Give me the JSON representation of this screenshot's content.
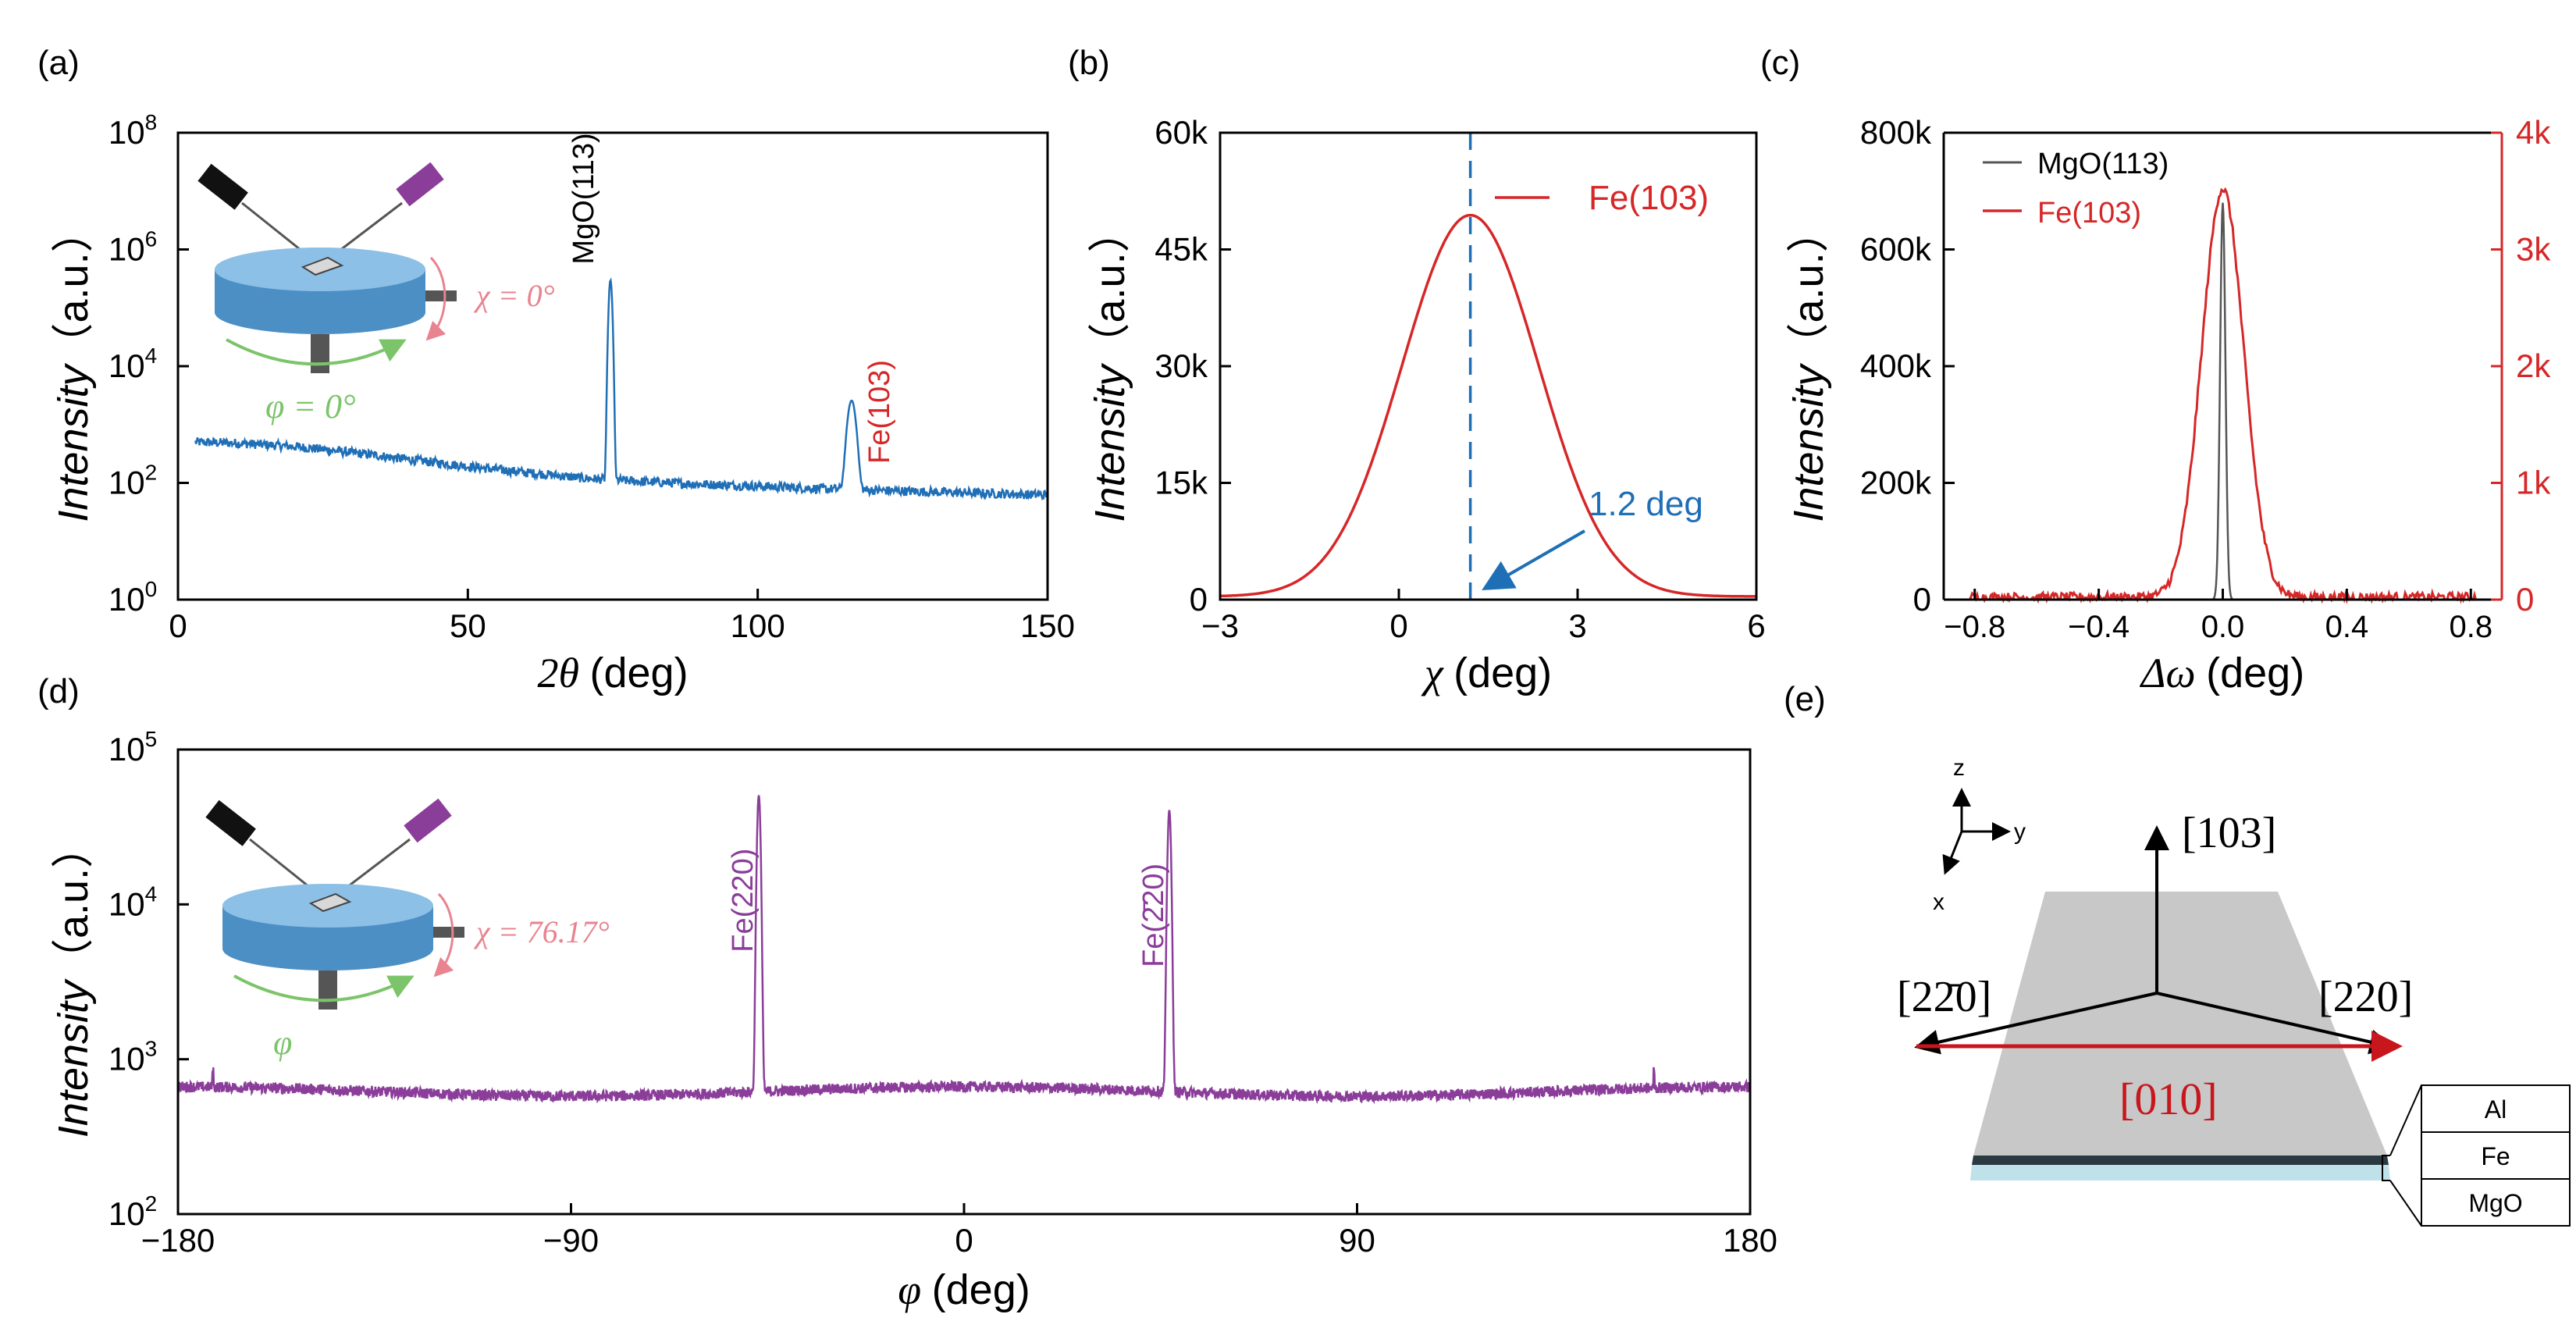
{
  "chart_data": [
    {
      "panel": "(a)",
      "type": "line",
      "x_axis": {
        "label_symbol": "2θ",
        "label_unit": "(deg)",
        "range": [
          0,
          150
        ],
        "ticks": [
          "0",
          "50",
          "100",
          "150"
        ]
      },
      "y_axis": {
        "label": "Intensity",
        "label_unit": "（a.u.）",
        "scale": "log",
        "range": [
          1,
          100000000
        ],
        "ticks": [
          {
            "base": "10",
            "exp": "0"
          },
          {
            "base": "10",
            "exp": "2"
          },
          {
            "base": "10",
            "exp": "4"
          },
          {
            "base": "10",
            "exp": "6"
          },
          {
            "base": "10",
            "exp": "8"
          }
        ]
      },
      "series": [
        {
          "color": "#1f6fb7",
          "baseline": [
            [
              3,
              500
            ],
            [
              10,
              480
            ],
            [
              20,
              420
            ],
            [
              30,
              330
            ],
            [
              40,
              250
            ],
            [
              50,
              190
            ],
            [
              60,
              150
            ],
            [
              70,
              120
            ],
            [
              80,
              105
            ],
            [
              90,
              95
            ],
            [
              100,
              88
            ],
            [
              110,
              80
            ],
            [
              120,
              75
            ],
            [
              130,
              70
            ],
            [
              140,
              66
            ],
            [
              150,
              62
            ]
          ],
          "peaks": [
            {
              "x": 74.6,
              "y": 300000,
              "label": "MgO(113)"
            },
            {
              "x": 116.2,
              "y": 2500,
              "label": "Fe(103)"
            }
          ]
        }
      ],
      "inset": {
        "chi_label": "χ = 0°",
        "phi_label": "φ = 0°"
      }
    },
    {
      "panel": "(b)",
      "type": "line",
      "x_axis": {
        "label_symbol": "χ",
        "label_unit": "(deg)",
        "range": [
          -3,
          6
        ],
        "ticks": [
          "-3",
          "0",
          "3",
          "6"
        ]
      },
      "y_axis": {
        "label": "Intensity",
        "label_unit": "（a.u.）",
        "range": [
          0,
          60000
        ],
        "ticks": [
          "0",
          "15k",
          "30k",
          "45k",
          "60k"
        ]
      },
      "series": [
        {
          "name": "Fe(103)",
          "color": "#d62728",
          "center": 1.2,
          "peak": 49000,
          "fwhm": 2.7
        }
      ],
      "marker_line": {
        "x": 1.2,
        "style": "dashed",
        "color": "#1f6fb7"
      },
      "annotation": "1.2 deg"
    },
    {
      "panel": "(c)",
      "type": "line",
      "x_axis": {
        "label_symbol": "Δω",
        "label_unit": "(deg)",
        "range": [
          -0.9,
          0.9
        ],
        "ticks": [
          "-0.8",
          "-0.4",
          "0.0",
          "0.4",
          "0.8"
        ]
      },
      "y_axis_left": {
        "label": "Intensity",
        "label_unit": "（a.u.）",
        "range": [
          0,
          800000
        ],
        "ticks": [
          "0",
          "200k",
          "400k",
          "600k",
          "800k"
        ]
      },
      "y_axis_right": {
        "range": [
          0,
          4000
        ],
        "ticks": [
          "0",
          "1k",
          "2k",
          "3k",
          "4k"
        ],
        "color": "#d62728"
      },
      "series": [
        {
          "name": "MgO(113)",
          "color": "#555555",
          "axis": "left",
          "center": 0.0,
          "peak": 680000,
          "fwhm": 0.02
        },
        {
          "name": "Fe(103)",
          "color": "#d62728",
          "axis": "right",
          "center": 0.0,
          "peak": 3500,
          "fwhm": 0.16
        }
      ]
    },
    {
      "panel": "(d)",
      "type": "line",
      "x_axis": {
        "label_symbol": "φ",
        "label_unit": "(deg)",
        "range": [
          -180,
          180
        ],
        "ticks": [
          "-180",
          "-90",
          "0",
          "90",
          "180"
        ]
      },
      "y_axis": {
        "label": "Intensity",
        "label_unit": "（a.u.）",
        "scale": "log",
        "range": [
          100,
          100000
        ],
        "ticks": [
          {
            "base": "10",
            "exp": "2"
          },
          {
            "base": "10",
            "exp": "3"
          },
          {
            "base": "10",
            "exp": "4"
          },
          {
            "base": "10",
            "exp": "5"
          }
        ]
      },
      "series": [
        {
          "color": "#8b3d9a",
          "baseline": 620,
          "peaks": [
            {
              "x": -47,
              "y": 50000,
              "label": "Fe(220)"
            },
            {
              "x": 47,
              "y": 40000,
              "label": "Fe(2̄20)"
            }
          ]
        }
      ],
      "inset": {
        "chi_label": "χ = 76.17°",
        "phi_label": "φ"
      }
    }
  ],
  "panel_labels": [
    "(a)",
    "(b)",
    "(c)",
    "(d)",
    "(e)"
  ],
  "schematic": {
    "axes": {
      "z": "z",
      "y": "y",
      "x": "x"
    },
    "directions": {
      "up": "[103]",
      "left": "[22̄0]",
      "right": "[220]",
      "bottom": "[010]"
    },
    "layers": [
      "Al",
      "Fe",
      "MgO"
    ]
  },
  "colors": {
    "blue": "#1f6fb7",
    "red": "#d62728",
    "purple": "#8b3d9a",
    "pink": "#e8838f",
    "green": "#7cc46a"
  }
}
